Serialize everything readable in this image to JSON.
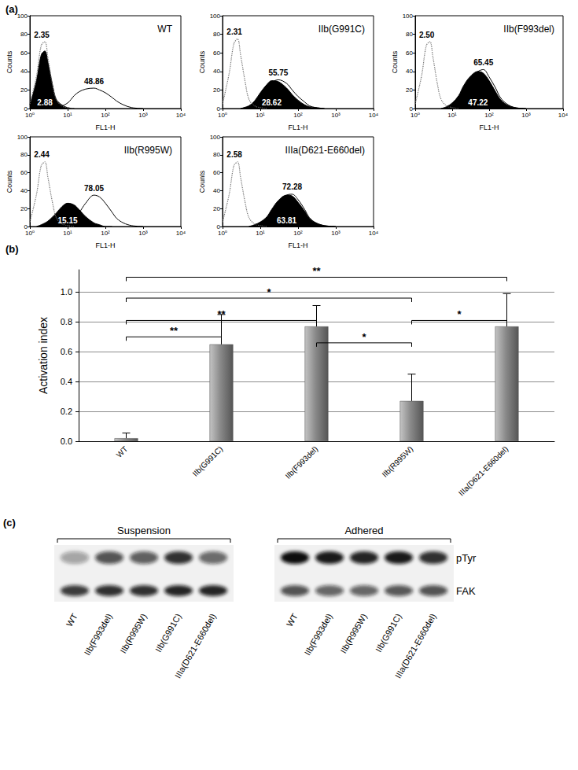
{
  "chart_data": [
    {
      "type": "line",
      "panel": "(a)",
      "title": "WT",
      "xlabel": "FL1-H",
      "ylabel": "Counts",
      "log": "x",
      "grid": false,
      "xlim": [
        1,
        10000
      ],
      "xticks": [
        {
          "value": 1,
          "label": "10⁰"
        },
        {
          "value": 10,
          "label": "10¹"
        },
        {
          "value": 100,
          "label": "10²"
        },
        {
          "value": 1000,
          "label": "10³"
        },
        {
          "value": 10000,
          "label": "10⁴"
        }
      ],
      "ylim": [
        0,
        100
      ],
      "yticks": [
        0,
        20,
        40,
        60,
        80,
        100
      ],
      "series": [
        {
          "type": "area",
          "color": "#000000",
          "annotation": "2.88",
          "x": [
            1,
            1.5,
            2,
            2.5,
            3,
            4,
            5,
            7,
            10,
            15
          ],
          "values": [
            4,
            30,
            58,
            62,
            50,
            25,
            10,
            4,
            1,
            0
          ]
        },
        {
          "type": "line",
          "line_style": "dotted",
          "color": "#707070",
          "annotation": "2.35",
          "x": [
            1,
            1.5,
            2,
            2.5,
            3,
            4,
            5,
            7,
            10,
            15
          ],
          "values": [
            5,
            35,
            68,
            72,
            55,
            25,
            10,
            3,
            1,
            0
          ]
        },
        {
          "type": "line",
          "line_style": "solid",
          "color": "#000000",
          "annotation": "48.86",
          "x": [
            5,
            10,
            15,
            20,
            30,
            50,
            70,
            100,
            150,
            200,
            300,
            500,
            1000
          ],
          "values": [
            0,
            6,
            14,
            18,
            21,
            22,
            20,
            17,
            12,
            8,
            4,
            1,
            0
          ]
        }
      ]
    },
    {
      "type": "line",
      "title": "IIb(G991C)",
      "xlabel": "FL1-H",
      "ylabel": "Counts",
      "log": "x",
      "grid": false,
      "xlim": [
        1,
        10000
      ],
      "xticks": [
        {
          "value": 1,
          "label": "10⁰"
        },
        {
          "value": 10,
          "label": "10¹"
        },
        {
          "value": 100,
          "label": "10²"
        },
        {
          "value": 1000,
          "label": "10³"
        },
        {
          "value": 10000,
          "label": "10⁴"
        }
      ],
      "ylim": [
        0,
        100
      ],
      "yticks": [
        0,
        20,
        40,
        60,
        80,
        100
      ],
      "series": [
        {
          "type": "area",
          "color": "#000000",
          "annotation": "28.62",
          "x": [
            3,
            5,
            7,
            10,
            15,
            20,
            30,
            50,
            70,
            100,
            150,
            200,
            300,
            500
          ],
          "values": [
            0,
            3,
            8,
            17,
            26,
            30,
            29,
            22,
            15,
            9,
            4,
            2,
            1,
            0
          ]
        },
        {
          "type": "line",
          "line_style": "dotted",
          "color": "#707070",
          "annotation": "2.31",
          "x": [
            1,
            1.5,
            2,
            2.5,
            3,
            4,
            5,
            7,
            10,
            15
          ],
          "values": [
            5,
            38,
            70,
            75,
            58,
            28,
            10,
            3,
            1,
            0
          ]
        },
        {
          "type": "line",
          "line_style": "solid",
          "color": "#000000",
          "annotation": "55.75",
          "x": [
            3,
            5,
            7,
            10,
            15,
            20,
            30,
            50,
            70,
            100,
            150,
            200,
            300,
            500
          ],
          "values": [
            0,
            2,
            5,
            12,
            22,
            28,
            31,
            27,
            20,
            13,
            7,
            3,
            1,
            0
          ]
        }
      ]
    },
    {
      "type": "line",
      "title": "IIb(F993del)",
      "xlabel": "FL1-H",
      "ylabel": "Counts",
      "log": "x",
      "grid": false,
      "xlim": [
        1,
        10000
      ],
      "xticks": [
        {
          "value": 1,
          "label": "10⁰"
        },
        {
          "value": 10,
          "label": "10¹"
        },
        {
          "value": 100,
          "label": "10²"
        },
        {
          "value": 1000,
          "label": "10³"
        },
        {
          "value": 10000,
          "label": "10⁴"
        }
      ],
      "ylim": [
        0,
        100
      ],
      "yticks": [
        0,
        20,
        40,
        60,
        80,
        100
      ],
      "series": [
        {
          "type": "area",
          "color": "#000000",
          "annotation": "47.22",
          "x": [
            5,
            7,
            10,
            15,
            20,
            30,
            50,
            70,
            100,
            150,
            200,
            300,
            500,
            1000
          ],
          "values": [
            0,
            2,
            6,
            14,
            24,
            34,
            40,
            38,
            30,
            18,
            10,
            4,
            1,
            0
          ]
        },
        {
          "type": "line",
          "line_style": "dotted",
          "color": "#707070",
          "annotation": "2.50",
          "x": [
            1,
            1.5,
            2,
            2.5,
            3,
            4,
            5,
            7,
            10,
            15
          ],
          "values": [
            5,
            36,
            68,
            72,
            56,
            26,
            10,
            3,
            1,
            0
          ]
        },
        {
          "type": "line",
          "line_style": "solid",
          "color": "#000000",
          "annotation": "65.45",
          "x": [
            5,
            7,
            10,
            15,
            20,
            30,
            50,
            70,
            100,
            150,
            200,
            300,
            500,
            1000
          ],
          "values": [
            0,
            1,
            5,
            12,
            21,
            32,
            40,
            42,
            34,
            22,
            12,
            5,
            1,
            0
          ]
        }
      ]
    },
    {
      "type": "line",
      "title": "IIb(R995W)",
      "xlabel": "FL1-H",
      "ylabel": "Counts",
      "log": "x",
      "grid": false,
      "xlim": [
        1,
        10000
      ],
      "xticks": [
        {
          "value": 1,
          "label": "10⁰"
        },
        {
          "value": 10,
          "label": "10¹"
        },
        {
          "value": 100,
          "label": "10²"
        },
        {
          "value": 1000,
          "label": "10³"
        },
        {
          "value": 10000,
          "label": "10⁴"
        }
      ],
      "ylim": [
        0,
        100
      ],
      "yticks": [
        0,
        20,
        40,
        60,
        80,
        100
      ],
      "series": [
        {
          "type": "area",
          "color": "#000000",
          "annotation": "15.15",
          "x": [
            1.5,
            2,
            3,
            5,
            7,
            10,
            15,
            20,
            30,
            50,
            70,
            100,
            150
          ],
          "values": [
            0,
            2,
            6,
            15,
            22,
            26,
            24,
            19,
            11,
            4,
            2,
            0,
            0
          ]
        },
        {
          "type": "line",
          "line_style": "dotted",
          "color": "#707070",
          "annotation": "2.44",
          "x": [
            1,
            1.5,
            2,
            2.5,
            3,
            4,
            5,
            7,
            10,
            15
          ],
          "values": [
            5,
            36,
            68,
            72,
            55,
            26,
            10,
            3,
            1,
            0
          ]
        },
        {
          "type": "line",
          "line_style": "solid",
          "color": "#000000",
          "annotation": "78.05",
          "x": [
            7,
            10,
            15,
            20,
            30,
            50,
            70,
            100,
            150,
            200,
            300,
            500,
            1000
          ],
          "values": [
            0,
            3,
            8,
            15,
            26,
            35,
            33,
            26,
            16,
            9,
            4,
            1,
            0
          ]
        }
      ]
    },
    {
      "type": "line",
      "title": "IIIa(D621-E660del)",
      "xlabel": "FL1-H",
      "ylabel": "Counts",
      "log": "x",
      "grid": false,
      "xlim": [
        1,
        10000
      ],
      "xticks": [
        {
          "value": 1,
          "label": "10⁰"
        },
        {
          "value": 10,
          "label": "10¹"
        },
        {
          "value": 100,
          "label": "10²"
        },
        {
          "value": 1000,
          "label": "10³"
        },
        {
          "value": 10000,
          "label": "10⁴"
        }
      ],
      "ylim": [
        0,
        100
      ],
      "yticks": [
        0,
        20,
        40,
        60,
        80,
        100
      ],
      "series": [
        {
          "type": "area",
          "color": "#000000",
          "annotation": "63.81",
          "x": [
            5,
            7,
            10,
            15,
            20,
            30,
            50,
            70,
            100,
            150,
            200,
            300,
            500,
            1000
          ],
          "values": [
            0,
            2,
            5,
            11,
            19,
            29,
            35,
            34,
            27,
            17,
            9,
            4,
            1,
            0
          ]
        },
        {
          "type": "line",
          "line_style": "dotted",
          "color": "#707070",
          "annotation": "2.58",
          "x": [
            1,
            1.5,
            2,
            2.5,
            3,
            4,
            5,
            7,
            10,
            15
          ],
          "values": [
            5,
            36,
            68,
            72,
            55,
            26,
            10,
            3,
            1,
            0
          ]
        },
        {
          "type": "line",
          "line_style": "solid",
          "color": "#000000",
          "annotation": "72.28",
          "x": [
            5,
            7,
            10,
            15,
            20,
            30,
            50,
            70,
            100,
            150,
            200,
            300,
            500,
            1000
          ],
          "values": [
            0,
            1,
            4,
            9,
            17,
            28,
            35,
            36,
            30,
            19,
            10,
            4,
            1,
            0
          ]
        }
      ]
    },
    {
      "type": "bar",
      "panel": "(b)",
      "ylabel": "Activation index",
      "categories": [
        "WT",
        "IIb(G991C)",
        "IIb(F993del)",
        "IIb(R995W)",
        "IIIa(D621-E660del)"
      ],
      "values": [
        0.02,
        0.65,
        0.77,
        0.27,
        0.77
      ],
      "errors": [
        0.035,
        0.2,
        0.14,
        0.18,
        0.22
      ],
      "color": "#8a8a8a",
      "ylim": [
        0,
        1.15
      ],
      "yticks": [
        {
          "value": 0,
          "label": "0.0"
        },
        0.2,
        0.4,
        0.6,
        0.8,
        {
          "value": 1,
          "label": "1.0"
        }
      ],
      "grid": true,
      "significance": [
        {
          "from": "WT",
          "to": "IIb(G991C)",
          "level": 0.7,
          "label": "**"
        },
        {
          "from": "WT",
          "to": "IIb(F993del)",
          "level": 0.81,
          "label": "**"
        },
        {
          "from": "WT",
          "to": "IIb(R995W)",
          "level": 0.96,
          "label": "*"
        },
        {
          "from": "WT",
          "to": "IIIa(D621-E660del)",
          "level": 1.1,
          "label": "**"
        },
        {
          "from": "IIb(F993del)",
          "to": "IIb(R995W)",
          "level": 0.66,
          "label": "*"
        },
        {
          "from": "IIb(R995W)",
          "to": "IIIa(D621-E660del)",
          "level": 0.81,
          "label": "*"
        }
      ]
    }
  ],
  "blot": {
    "panel": "(c)",
    "groups": [
      "Suspension",
      "Adhered"
    ],
    "lanes": [
      "WT",
      "IIb(F993del)",
      "IIb(R995W)",
      "IIb(G991C)",
      "IIIa(D621-E660del)"
    ],
    "rows": [
      {
        "name": "pTyr",
        "intensity": [
          [
            0.35,
            0.7,
            0.65,
            0.85,
            0.6
          ],
          [
            1.0,
            0.95,
            0.9,
            0.95,
            0.85
          ]
        ]
      },
      {
        "name": "FAK",
        "intensity": [
          [
            0.8,
            0.85,
            0.85,
            0.9,
            0.9
          ],
          [
            0.7,
            0.62,
            0.62,
            0.68,
            0.7
          ]
        ]
      }
    ]
  }
}
